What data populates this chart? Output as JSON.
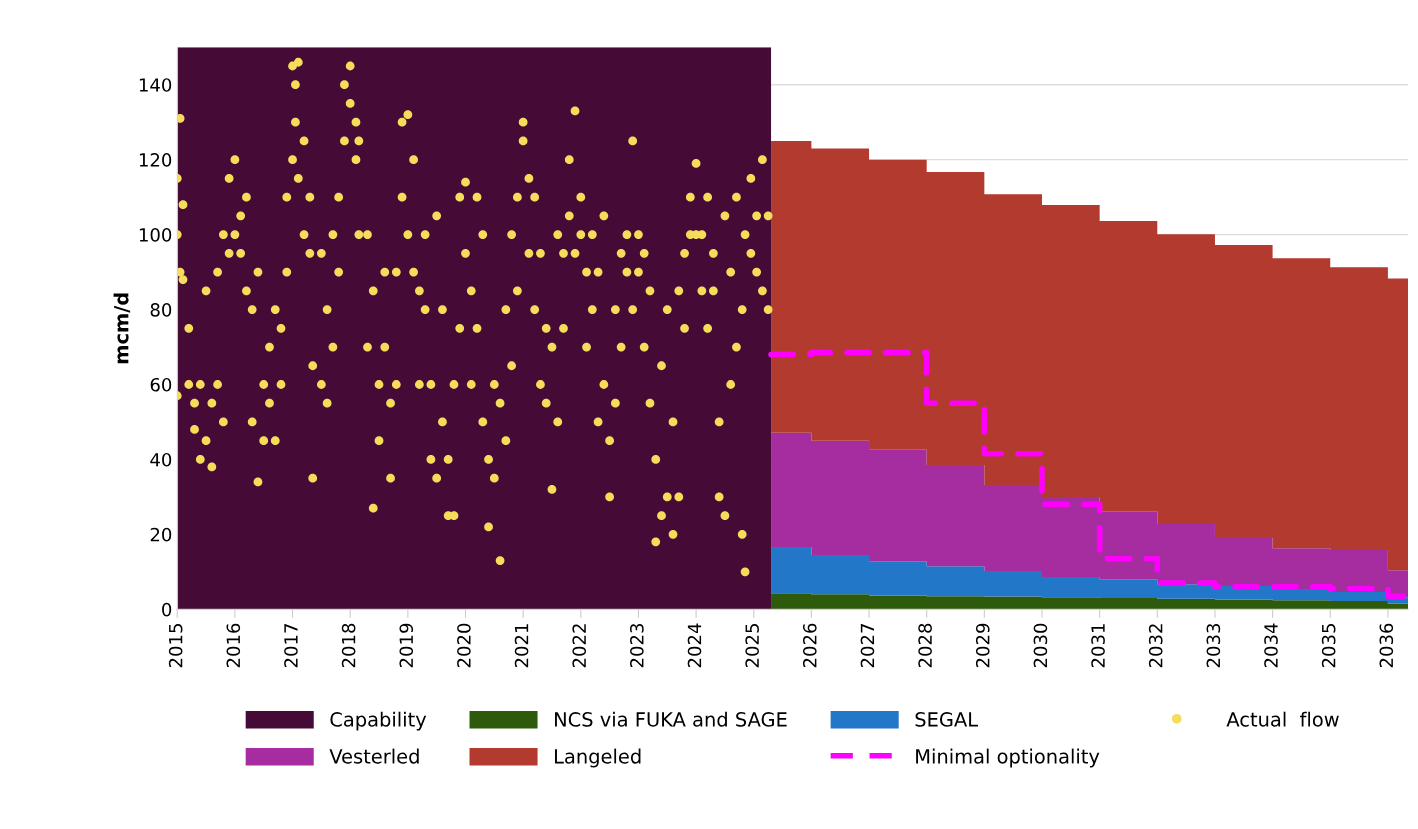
{
  "chart_data": {
    "type": "area",
    "ylabel": "mcm/d",
    "stacked": true,
    "xlim": [
      2015,
      2036.35
    ],
    "ylim": [
      0,
      150
    ],
    "xticks": [
      2015,
      2016,
      2017,
      2018,
      2019,
      2020,
      2021,
      2022,
      2023,
      2024,
      2025,
      2026,
      2027,
      2028,
      2029,
      2030,
      2031,
      2032,
      2033,
      2034,
      2035,
      2036
    ],
    "yticks": [
      0,
      20,
      40,
      60,
      80,
      100,
      120,
      140
    ],
    "grid": "y",
    "legend": "bottom",
    "bands": [
      {
        "axis": "x",
        "from": 2015,
        "to": 2025.3,
        "label": "Capability",
        "color": "#450a36"
      }
    ],
    "series": [
      {
        "name": "NCS via FUKA and SAGE",
        "color": "#2e5a0c",
        "x": [
          2025.3,
          2026,
          2027,
          2028,
          2029,
          2030,
          2031,
          2032,
          2033,
          2034,
          2035,
          2036,
          2036.35
        ],
        "values": [
          4.3,
          4.0,
          3.7,
          3.5,
          3.4,
          3.2,
          3.0,
          2.8,
          2.6,
          2.4,
          2.2,
          1.5,
          1.5
        ]
      },
      {
        "name": "SEGAL",
        "color": "#2377c9",
        "x": [
          2025.3,
          2026,
          2027,
          2028,
          2029,
          2030,
          2031,
          2032,
          2033,
          2034,
          2035,
          2036,
          2036.35
        ],
        "values": [
          12.3,
          10.5,
          9.1,
          8.0,
          6.8,
          5.4,
          5.0,
          3.9,
          3.6,
          3.0,
          2.4,
          1.7,
          1.7
        ]
      },
      {
        "name": "Actual  flow",
        "type": "scatter",
        "color": "#f5dc5a",
        "marker": "circle",
        "x": [
          2015.0,
          2015.0,
          2015.0,
          2015.05,
          2015.05,
          2015.1,
          2015.1,
          2015.2,
          2015.2,
          2015.3,
          2015.3,
          2015.4,
          2015.4,
          2015.5,
          2015.5,
          2015.6,
          2015.6,
          2015.7,
          2015.7,
          2015.8,
          2015.8,
          2015.9,
          2015.9,
          2016.0,
          2016.0,
          2016.1,
          2016.1,
          2016.2,
          2016.2,
          2016.3,
          2016.3,
          2016.4,
          2016.4,
          2016.5,
          2016.5,
          2016.6,
          2016.6,
          2016.7,
          2016.7,
          2016.8,
          2016.8,
          2016.9,
          2016.9,
          2017.0,
          2017.0,
          2017.05,
          2017.05,
          2017.1,
          2017.1,
          2017.2,
          2017.2,
          2017.3,
          2017.3,
          2017.35,
          2017.35,
          2017.5,
          2017.5,
          2017.6,
          2017.6,
          2017.7,
          2017.7,
          2017.8,
          2017.8,
          2017.9,
          2017.9,
          2018.0,
          2018.0,
          2018.1,
          2018.1,
          2018.15,
          2018.15,
          2018.3,
          2018.3,
          2018.4,
          2018.4,
          2018.5,
          2018.5,
          2018.6,
          2018.6,
          2018.7,
          2018.7,
          2018.8,
          2018.8,
          2018.9,
          2018.9,
          2019.0,
          2019.0,
          2019.1,
          2019.1,
          2019.2,
          2019.2,
          2019.3,
          2019.3,
          2019.4,
          2019.4,
          2019.5,
          2019.5,
          2019.6,
          2019.6,
          2019.7,
          2019.7,
          2019.8,
          2019.8,
          2019.9,
          2019.9,
          2020.0,
          2020.0,
          2020.1,
          2020.1,
          2020.2,
          2020.2,
          2020.3,
          2020.3,
          2020.4,
          2020.4,
          2020.5,
          2020.5,
          2020.6,
          2020.6,
          2020.7,
          2020.7,
          2020.8,
          2020.8,
          2020.9,
          2020.9,
          2021.0,
          2021.0,
          2021.1,
          2021.1,
          2021.2,
          2021.2,
          2021.3,
          2021.3,
          2021.4,
          2021.4,
          2021.5,
          2021.5,
          2021.6,
          2021.6,
          2021.7,
          2021.7,
          2021.8,
          2021.8,
          2021.9,
          2021.9,
          2022.0,
          2022.0,
          2022.1,
          2022.1,
          2022.2,
          2022.2,
          2022.3,
          2022.3,
          2022.4,
          2022.4,
          2022.5,
          2022.5,
          2022.6,
          2022.6,
          2022.7,
          2022.7,
          2022.8,
          2022.8,
          2022.9,
          2022.9,
          2023.0,
          2023.0,
          2023.1,
          2023.1,
          2023.2,
          2023.2,
          2023.3,
          2023.3,
          2023.4,
          2023.4,
          2023.5,
          2023.5,
          2023.6,
          2023.6,
          2023.7,
          2023.7,
          2023.8,
          2023.8,
          2023.9,
          2023.9,
          2024.0,
          2024.0,
          2024.1,
          2024.1,
          2024.2,
          2024.2,
          2024.3,
          2024.3,
          2024.4,
          2024.4,
          2024.5,
          2024.5,
          2024.6,
          2024.6,
          2024.7,
          2024.7,
          2024.8,
          2024.8,
          2024.85,
          2024.85,
          2024.95,
          2024.95,
          2025.05,
          2025.05,
          2025.15,
          2025.15,
          2025.25,
          2025.25
        ],
        "values": [
          115,
          100,
          57,
          131,
          90,
          108,
          88,
          75,
          60,
          55,
          48,
          40,
          60,
          45,
          85,
          38,
          55,
          60,
          90,
          50,
          100,
          95,
          115,
          120,
          100,
          105,
          95,
          110,
          85,
          80,
          50,
          90,
          34,
          60,
          45,
          70,
          55,
          80,
          45,
          75,
          60,
          90,
          110,
          120,
          145,
          140,
          130,
          146,
          115,
          125,
          100,
          110,
          95,
          65,
          35,
          60,
          95,
          80,
          55,
          100,
          70,
          90,
          110,
          125,
          140,
          145,
          135,
          120,
          130,
          125,
          100,
          100,
          70,
          27,
          85,
          60,
          45,
          90,
          70,
          55,
          35,
          90,
          60,
          110,
          130,
          132,
          100,
          120,
          90,
          85,
          60,
          80,
          100,
          60,
          40,
          35,
          105,
          50,
          80,
          40,
          25,
          25,
          60,
          75,
          110,
          95,
          114,
          85,
          60,
          110,
          75,
          50,
          100,
          40,
          22,
          35,
          60,
          13,
          55,
          45,
          80,
          65,
          100,
          110,
          85,
          125,
          130,
          115,
          95,
          80,
          110,
          60,
          95,
          55,
          75,
          32,
          70,
          50,
          100,
          95,
          75,
          120,
          105,
          133,
          95,
          110,
          100,
          90,
          70,
          100,
          80,
          50,
          90,
          60,
          105,
          30,
          45,
          55,
          80,
          95,
          70,
          100,
          90,
          125,
          80,
          90,
          100,
          70,
          95,
          85,
          55,
          40,
          18,
          25,
          65,
          30,
          80,
          50,
          20,
          85,
          30,
          75,
          95,
          110,
          100,
          119,
          100,
          100,
          85,
          75,
          110,
          95,
          85,
          50,
          30,
          105,
          25,
          90,
          60,
          70,
          110,
          80,
          20,
          10,
          100,
          115,
          95,
          105,
          90,
          120,
          85,
          80,
          105
        ]
      },
      {
        "name": "Vesterled",
        "color": "#a52da0",
        "x": [
          2025.3,
          2026,
          2027,
          2028,
          2029,
          2030,
          2031,
          2032,
          2033,
          2034,
          2035,
          2036,
          2036.35
        ],
        "values": [
          30.5,
          30.5,
          29.8,
          27.0,
          23.0,
          21.4,
          18.2,
          16.1,
          12.8,
          10.9,
          11.2,
          7.2,
          7.2
        ]
      },
      {
        "name": "Langeled",
        "color": "#b33a2e",
        "x": [
          2025.3,
          2026,
          2027,
          2028,
          2029,
          2030,
          2031,
          2032,
          2033,
          2034,
          2035,
          2036,
          2036.35
        ],
        "values": [
          77.9,
          78.0,
          77.4,
          78.2,
          77.6,
          77.9,
          77.4,
          77.3,
          78.2,
          77.4,
          75.5,
          77.9,
          77.9
        ]
      },
      {
        "name": "Minimal optionality",
        "type": "step",
        "color": "#ff00ff",
        "line_style": "dashed",
        "x": [
          2025.3,
          2026,
          2027,
          2028,
          2029,
          2030,
          2031,
          2032,
          2033,
          2034,
          2035,
          2036,
          2036.35
        ],
        "values": [
          68,
          68.5,
          68.5,
          55,
          41.5,
          28,
          13.5,
          7,
          6,
          6,
          5.5,
          3.5,
          3.5
        ]
      }
    ]
  }
}
